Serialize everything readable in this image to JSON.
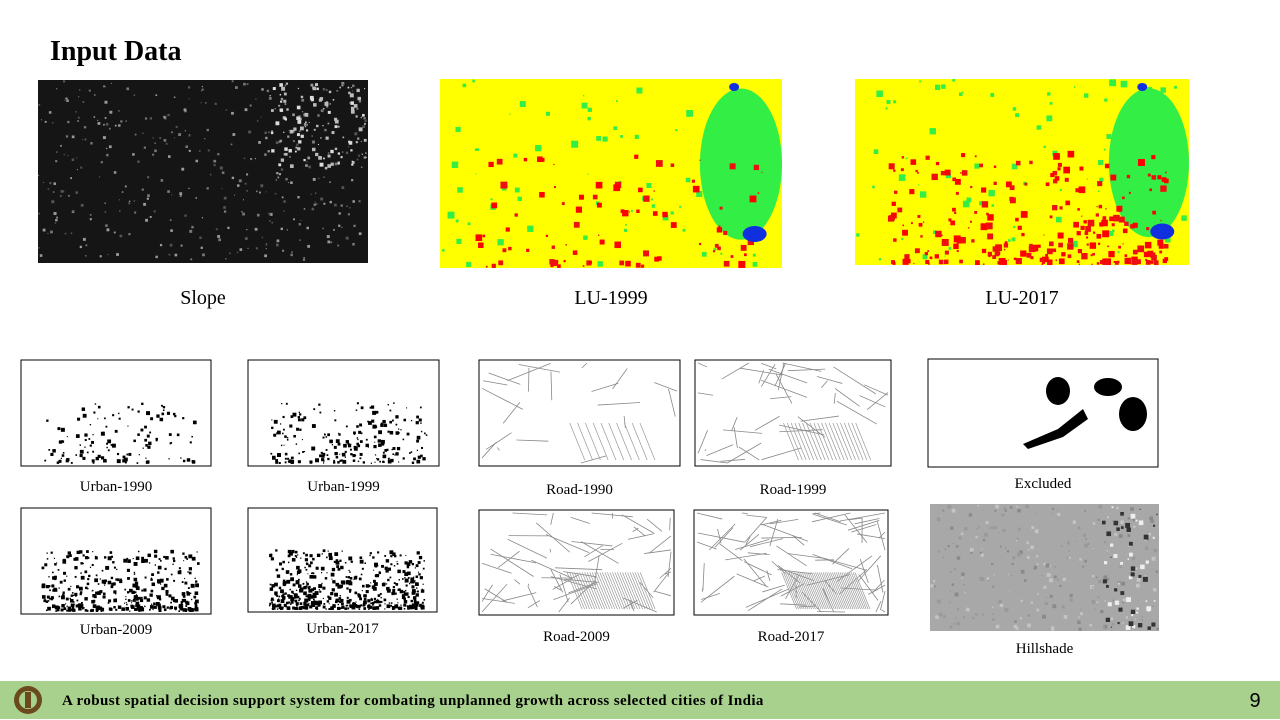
{
  "slide": {
    "title": "Input Data",
    "large_panels": [
      {
        "caption": "Slope"
      },
      {
        "caption": "LU-1999"
      },
      {
        "caption": "LU-2017"
      }
    ],
    "small_panels": [
      {
        "caption": "Urban-1990"
      },
      {
        "caption": "Urban-1999"
      },
      {
        "caption": "Urban-2009"
      },
      {
        "caption": "Urban-2017"
      },
      {
        "caption": "Road-1990"
      },
      {
        "caption": "Road-1999"
      },
      {
        "caption": "Road-2009"
      },
      {
        "caption": "Road-2017"
      },
      {
        "caption": "Excluded"
      },
      {
        "caption": "Hillshade"
      }
    ],
    "footer": {
      "text": "A robust spatial decision support system for combating unplanned growth across selected cities of India",
      "page": 9
    }
  }
}
